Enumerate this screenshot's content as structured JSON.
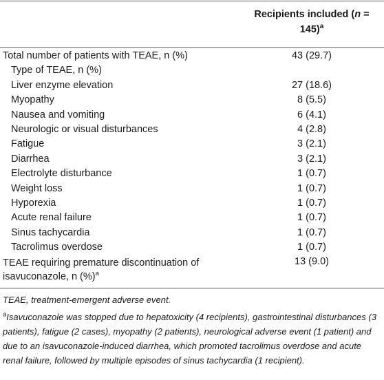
{
  "header": {
    "col_label_line1_pre": "Recipients included (",
    "col_label_n": "n",
    "col_label_line1_post": " =",
    "col_label_line2": "145)",
    "col_label_sup": "a"
  },
  "rows": [
    {
      "label": "Total number of patients with TEAE, n (%)",
      "value": "43 (29.7)"
    },
    {
      "label": "Type of TEAE, n (%)",
      "value": ""
    },
    {
      "label": "Liver enzyme elevation",
      "value": "27 (18.6)"
    },
    {
      "label": "Myopathy",
      "value": "8 (5.5)"
    },
    {
      "label": "Nausea and vomiting",
      "value": "6 (4.1)"
    },
    {
      "label": "Neurologic or visual disturbances",
      "value": "4 (2.8)"
    },
    {
      "label": "Fatigue",
      "value": "3 (2.1)"
    },
    {
      "label": "Diarrhea",
      "value": "3 (2.1)"
    },
    {
      "label": "Electrolyte disturbance",
      "value": "1 (0.7)"
    },
    {
      "label": "Weight loss",
      "value": "1 (0.7)"
    },
    {
      "label": "Hyporexia",
      "value": "1 (0.7)"
    },
    {
      "label": "Acute renal failure",
      "value": "1 (0.7)"
    },
    {
      "label": "Sinus tachycardia",
      "value": "1 (0.7)"
    },
    {
      "label": "Tacrolimus overdose",
      "value": "1 (0.7)"
    },
    {
      "label": "TEAE requiring premature discontinuation of isavuconazole, n (%)",
      "label_sup": "a",
      "value": "13 (9.0)"
    }
  ],
  "footnotes": {
    "abbrev": "TEAE, treatment-emergent adverse event.",
    "note_a_sup": "a",
    "note_a": "Isavuconazole was stopped due to hepatoxicity (4 recipients), gastrointestinal disturbances (3 patients), fatigue (2 cases), myopathy (2 patients), neurological adverse event (1 patient) and due to an isavuconazole-induced diarrhea, which promoted tacrolimus overdose and acute renal failure, followed by multiple episodes of sinus tachycardia (1 recipient)."
  }
}
